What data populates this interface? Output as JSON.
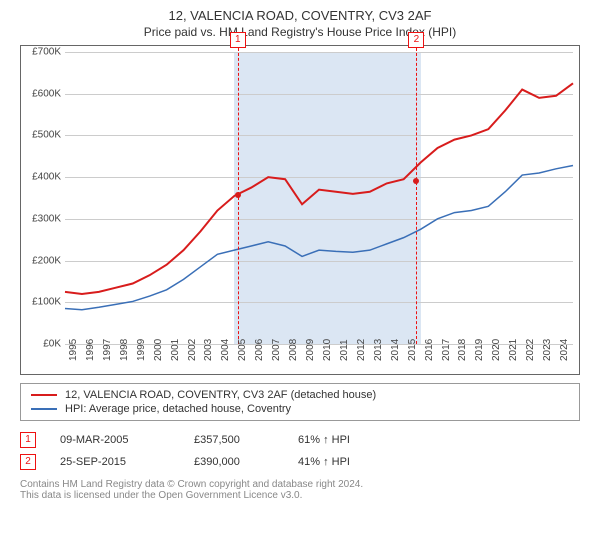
{
  "chart": {
    "type": "line",
    "title": "12, VALENCIA ROAD, COVENTRY, CV3 2AF",
    "subtitle": "Price paid vs. HM Land Registry's House Price Index (HPI)",
    "background_color": "#ffffff",
    "frame_color": "#666666",
    "band_color": "#dbe6f3",
    "xlim": [
      1995,
      2025
    ],
    "ylim": [
      0,
      700000
    ],
    "ytick_step": 100000,
    "ytick_prefix": "£",
    "ytick_suffix": "K",
    "xticks": [
      1995,
      1996,
      1997,
      1998,
      1999,
      2000,
      2001,
      2002,
      2003,
      2004,
      2005,
      2006,
      2007,
      2008,
      2009,
      2010,
      2011,
      2012,
      2013,
      2014,
      2015,
      2016,
      2017,
      2018,
      2019,
      2020,
      2021,
      2022,
      2023,
      2024
    ],
    "label_fontsize": 10,
    "title_fontsize": 13,
    "series": [
      {
        "label": "12, VALENCIA ROAD, COVENTRY, CV3 2AF (detached house)",
        "color": "#d81c1c",
        "line_width": 2,
        "ys_by_year": {
          "1995": 125000,
          "1996": 120000,
          "1997": 125000,
          "1998": 135000,
          "1999": 145000,
          "2000": 165000,
          "2001": 190000,
          "2002": 225000,
          "2003": 270000,
          "2004": 320000,
          "2005": 355000,
          "2006": 375000,
          "2007": 400000,
          "2008": 395000,
          "2009": 335000,
          "2010": 370000,
          "2011": 365000,
          "2012": 360000,
          "2013": 365000,
          "2014": 385000,
          "2015": 395000,
          "2016": 435000,
          "2017": 470000,
          "2018": 490000,
          "2019": 500000,
          "2020": 515000,
          "2021": 560000,
          "2022": 610000,
          "2023": 590000,
          "2024": 595000,
          "2025": 625000
        }
      },
      {
        "label": "HPI: Average price, detached house, Coventry",
        "color": "#3a6fb7",
        "line_width": 1.5,
        "ys_by_year": {
          "1995": 85000,
          "1996": 82000,
          "1997": 88000,
          "1998": 95000,
          "1999": 102000,
          "2000": 115000,
          "2001": 130000,
          "2002": 155000,
          "2003": 185000,
          "2004": 215000,
          "2005": 225000,
          "2006": 235000,
          "2007": 245000,
          "2008": 235000,
          "2009": 210000,
          "2010": 225000,
          "2011": 222000,
          "2012": 220000,
          "2013": 225000,
          "2014": 240000,
          "2015": 255000,
          "2016": 275000,
          "2017": 300000,
          "2018": 315000,
          "2019": 320000,
          "2020": 330000,
          "2021": 365000,
          "2022": 405000,
          "2023": 410000,
          "2024": 420000,
          "2025": 428000
        }
      }
    ],
    "markers": [
      {
        "id": "1",
        "year": 2005.2,
        "value": 357500,
        "date": "09-MAR-2005",
        "price": "£357,500",
        "diff": "61% ↑ HPI"
      },
      {
        "id": "2",
        "year": 2015.75,
        "value": 390000,
        "date": "25-SEP-2015",
        "price": "£390,000",
        "diff": "41% ↑ HPI"
      }
    ],
    "marker_box_color": "#e11212",
    "point_color": "#d81c1c",
    "footer": [
      "Contains HM Land Registry data © Crown copyright and database right 2024.",
      "This data is licensed under the Open Government Licence v3.0."
    ]
  }
}
